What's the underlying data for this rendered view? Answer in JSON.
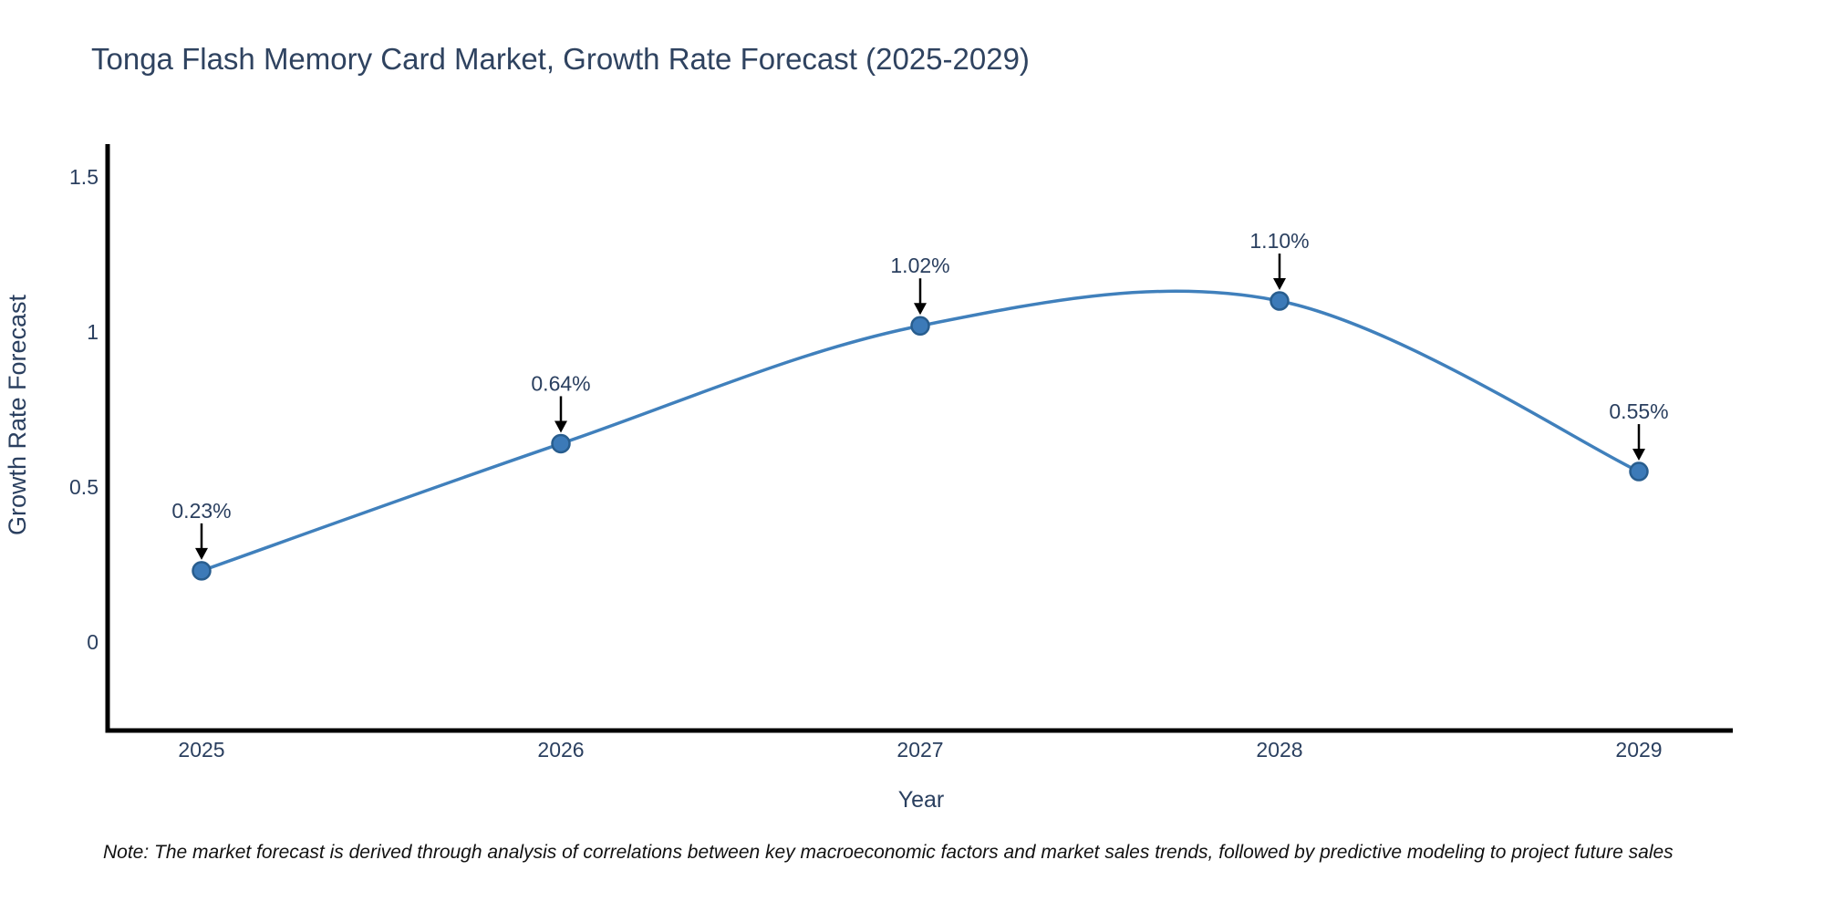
{
  "title": "Tonga Flash Memory Card Market, Growth Rate Forecast (2025-2029)",
  "note": "Note: The market forecast is derived through analysis of correlations between key macroeconomic factors and market sales trends, followed by predictive modeling to project future sales",
  "chart_data": {
    "type": "line",
    "title": "Tonga Flash Memory Card Market, Growth Rate Forecast (2025-2029)",
    "categories": [
      "2025",
      "2026",
      "2027",
      "2028",
      "2029"
    ],
    "series": [
      {
        "name": "Growth Rate Forecast",
        "values": [
          0.23,
          0.64,
          1.02,
          1.1,
          0.55
        ],
        "labels": [
          "0.23%",
          "0.64%",
          "1.02%",
          "1.10%",
          "0.55%"
        ]
      }
    ],
    "xlabel": "Year",
    "ylabel": "Growth Rate Forecast",
    "yticks": {
      "values": [
        0,
        0.5,
        1,
        1.5
      ],
      "labels": [
        "0",
        "0.5",
        "1",
        "1.5"
      ]
    },
    "ylim": [
      -0.285,
      1.6
    ],
    "grid": false,
    "legend": false,
    "curve": "spline",
    "annotation_style": "value-label-with-down-arrow",
    "colors": {
      "line": "#4080bc",
      "marker": "#3c7ab8",
      "marker_edge": "#285d8e",
      "arrow": "#000000",
      "text": "#2a3f5f",
      "axis": "#000000",
      "note_text": "#111111",
      "background": "#ffffff"
    }
  }
}
